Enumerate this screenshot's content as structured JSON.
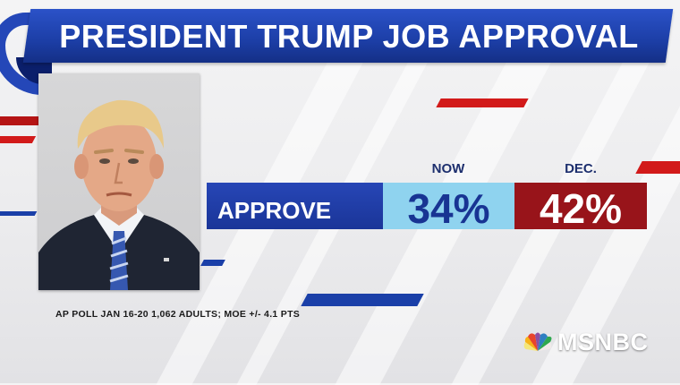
{
  "title": "PRESIDENT TRUMP JOB APPROVAL",
  "photo_subject": "portrait-photo",
  "stats": {
    "row_label": "APPROVE",
    "columns": [
      {
        "header": "NOW",
        "value": "34%"
      },
      {
        "header": "DEC.",
        "value": "42%"
      }
    ]
  },
  "source": "AP POLL JAN 16-20 1,062 ADULTS; MOE +/- 4.1 PTS",
  "network": {
    "name": "MSNBC",
    "logo_icon": "peacock-icon"
  },
  "colors": {
    "ribbon": "#1c3ea6",
    "approve_bar": "#1a3598",
    "now_bar": "#8fd3ef",
    "dec_bar": "#98141a",
    "accent_red": "#d21a1a"
  }
}
